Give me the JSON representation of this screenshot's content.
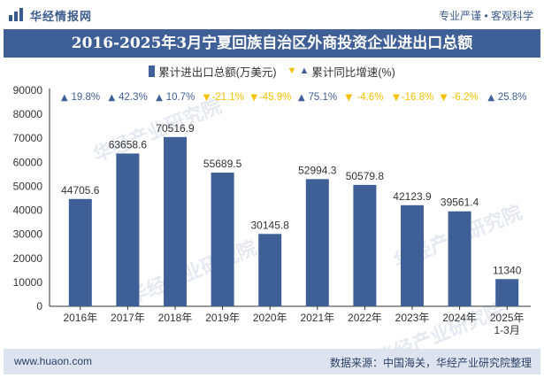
{
  "header": {
    "brand": "华经情报网",
    "tagline": "专业严谨 • 客观科学",
    "title": "2016-2025年3月宁夏回族自治区外商投资企业进出口总额"
  },
  "legend": {
    "bar_label": "累计进出口总额(万美元)",
    "growth_label": "累计同比增速(%)"
  },
  "chart_data": {
    "type": "bar",
    "title": "2016-2025年3月宁夏回族自治区外商投资企业进出口总额",
    "categories": [
      "2016年",
      "2017年",
      "2018年",
      "2019年",
      "2020年",
      "2021年",
      "2022年",
      "2023年",
      "2024年",
      "2025年\n1-3月"
    ],
    "values": [
      44705.6,
      63658.6,
      70516.9,
      55689.5,
      30145.8,
      52994.3,
      50579.8,
      42123.9,
      39561.4,
      11340
    ],
    "value_labels": [
      "44705.6",
      "63658.6",
      "70516.9",
      "55689.5",
      "30145.8",
      "52994.3",
      "50579.8",
      "42123.9",
      "39561.4",
      "11340"
    ],
    "growth": [
      19.8,
      42.3,
      10.7,
      -21.1,
      -45.9,
      75.1,
      -4.6,
      -16.8,
      -6.2,
      25.8
    ],
    "growth_labels": [
      "19.8%",
      "42.3%",
      "10.7%",
      "-21.1%",
      "-45.9%",
      "75.1%",
      "-4.6%",
      "-16.8%",
      "-6.2%",
      "25.8%"
    ],
    "yticks": [
      "0",
      "10000",
      "20000",
      "30000",
      "40000",
      "50000",
      "60000",
      "70000",
      "80000",
      "90000"
    ],
    "ylim": [
      0,
      90000
    ],
    "series_name": "累计进出口总额(万美元)",
    "growth_series_name": "累计同比增速(%)",
    "colors": {
      "bar": "#3f5f97",
      "up": "#3f5f97",
      "down": "#f5c000"
    }
  },
  "watermark": "华经产业研究院",
  "footer": {
    "left": "www.huaon.com",
    "right": "数据来源：中国海关，华经产业研究院整理"
  }
}
